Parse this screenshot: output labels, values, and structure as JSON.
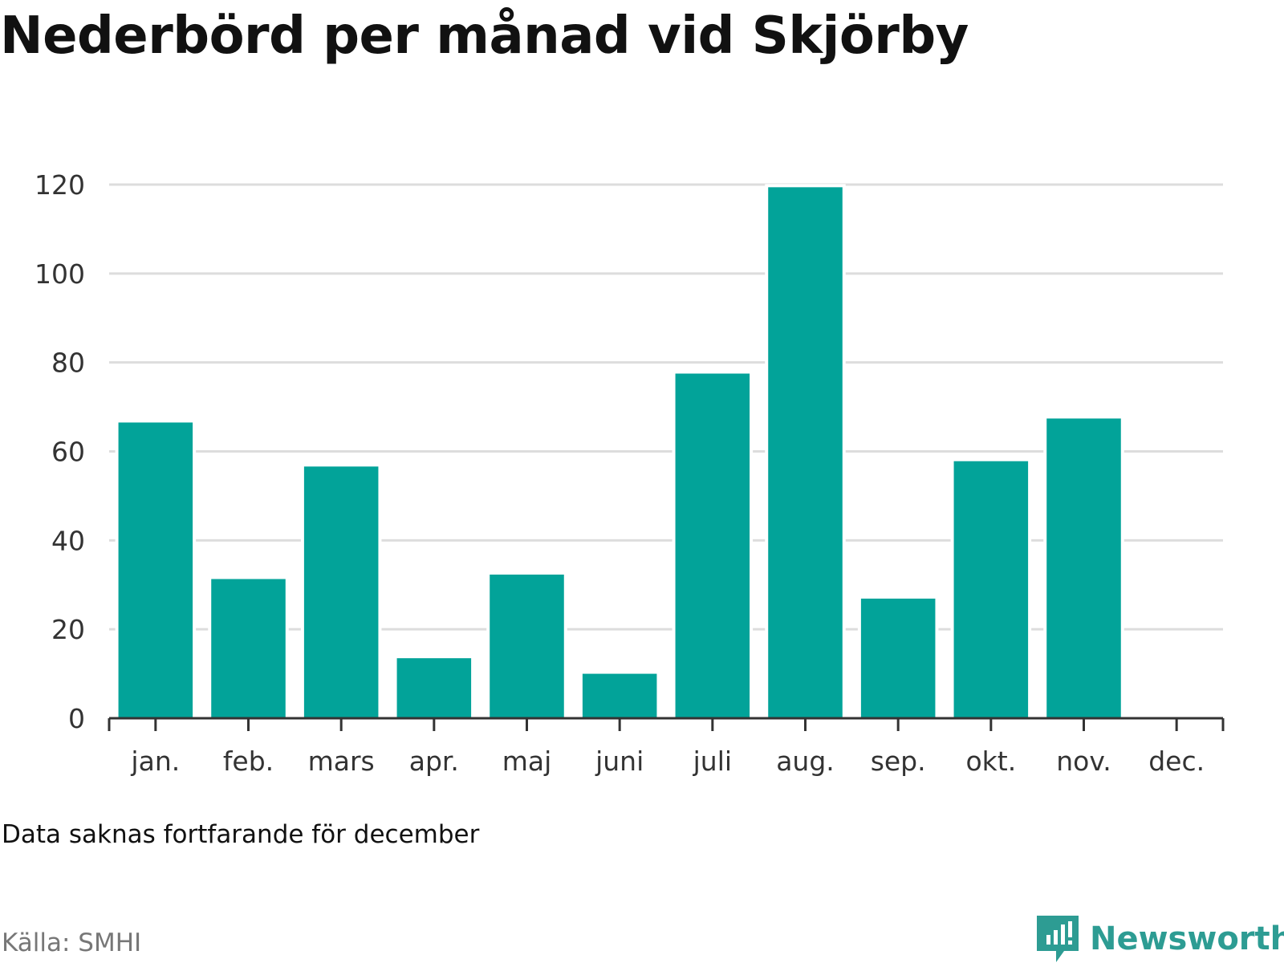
{
  "title": "Nederbörd per månad vid Skjörby",
  "note": "Data saknas fortfarande för december",
  "source": "Källa: SMHI",
  "brand": {
    "name": "Newsworthy",
    "icon": "newsworthy-logo-icon",
    "color": "#2d9c93"
  },
  "colors": {
    "bar": "#02a399",
    "grid": "#dddddd",
    "axis": "#333333"
  },
  "chart_data": {
    "type": "bar",
    "title": "Nederbörd per månad vid Skjörby",
    "xlabel": "",
    "ylabel": "",
    "categories": [
      "jan.",
      "feb.",
      "mars",
      "apr.",
      "maj",
      "juni",
      "juli",
      "aug.",
      "sep.",
      "okt.",
      "nov.",
      "dec."
    ],
    "values": [
      66.5,
      31.3,
      56.6,
      13.5,
      32.3,
      10,
      77.5,
      119.4,
      26.9,
      57.8,
      67.4,
      null
    ],
    "ylim": [
      0,
      120
    ],
    "yticks": [
      0,
      20,
      40,
      60,
      80,
      100,
      120
    ],
    "grid": true,
    "legend": "none"
  }
}
